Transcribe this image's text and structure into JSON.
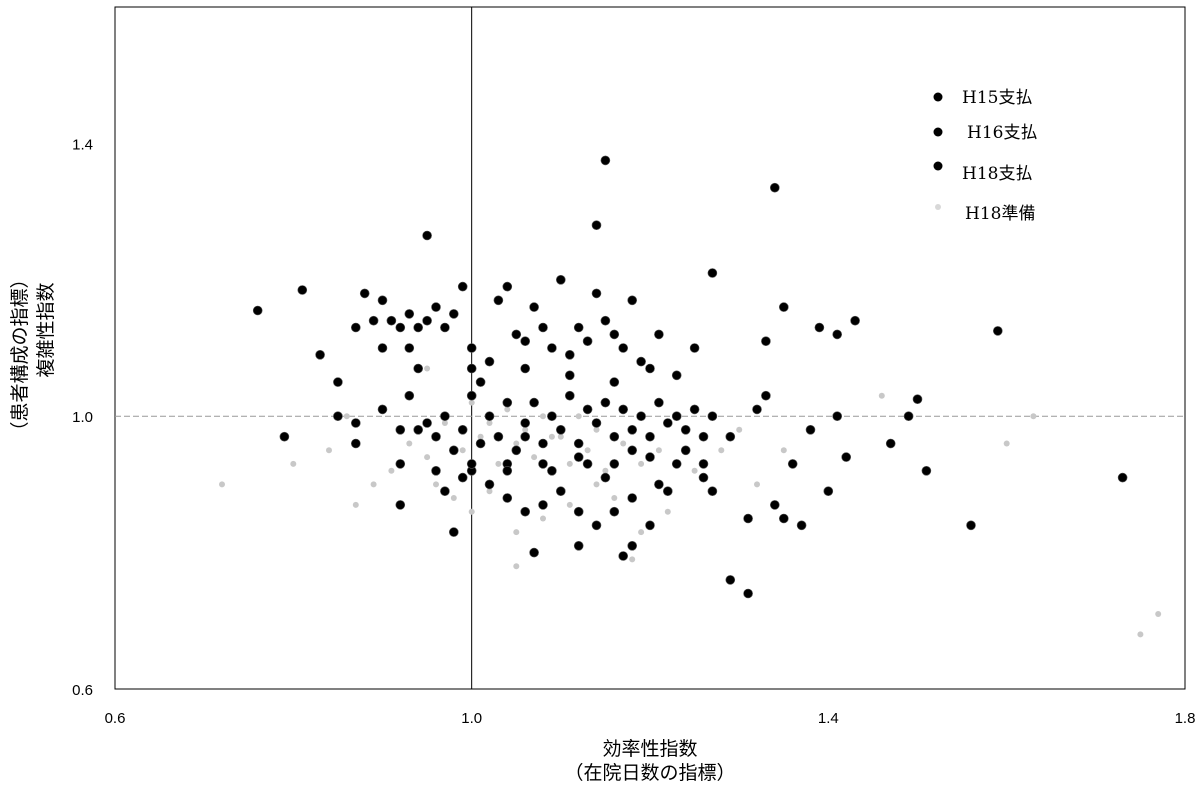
{
  "chart_data": {
    "type": "scatter",
    "xlabel_lines": [
      "効率性指数",
      "（在院日数の指標）"
    ],
    "ylabel_lines": [
      "（患者構成の指標）",
      "複雑性指数"
    ],
    "xlim": [
      0.6,
      1.8
    ],
    "ylim": [
      0.6,
      1.6
    ],
    "xticks": [
      "0.6",
      "1.0",
      "1.4",
      "1.8"
    ],
    "yticks": [
      "0.6",
      "1.0",
      "1.4"
    ],
    "grid": false,
    "reference_lines": {
      "x": 1.0,
      "y": 1.0
    },
    "legend_position": "top-right",
    "colors": {
      "H15": "#000000",
      "H16": "#000000",
      "H18": "#000000",
      "H18p": "#c8c8c8"
    },
    "series": [
      {
        "name": "H15支払",
        "points": [
          [
            0.76,
            1.155
          ],
          [
            0.81,
            1.185
          ],
          [
            0.83,
            1.09
          ],
          [
            0.85,
            1.05
          ],
          [
            0.85,
            1.0
          ],
          [
            0.87,
            1.13
          ],
          [
            0.88,
            1.18
          ],
          [
            0.89,
            1.14
          ],
          [
            0.9,
            1.17
          ],
          [
            0.91,
            1.14
          ],
          [
            0.92,
            1.13
          ],
          [
            0.93,
            1.15
          ],
          [
            0.94,
            1.13
          ],
          [
            0.95,
            1.14
          ],
          [
            0.96,
            1.16
          ],
          [
            0.97,
            1.13
          ],
          [
            0.98,
            1.15
          ],
          [
            0.99,
            1.19
          ],
          [
            1.0,
            1.1
          ],
          [
            1.01,
            1.05
          ],
          [
            1.02,
            1.08
          ],
          [
            1.03,
            1.17
          ],
          [
            1.04,
            1.19
          ],
          [
            1.05,
            1.12
          ],
          [
            1.06,
            1.11
          ],
          [
            1.07,
            1.16
          ],
          [
            1.08,
            1.13
          ],
          [
            1.09,
            1.1
          ],
          [
            1.1,
            1.2
          ],
          [
            1.11,
            1.09
          ],
          [
            1.12,
            1.13
          ],
          [
            1.13,
            1.11
          ],
          [
            1.14,
            1.18
          ],
          [
            1.15,
            1.14
          ],
          [
            1.16,
            1.12
          ],
          [
            1.17,
            1.1
          ],
          [
            1.18,
            1.17
          ],
          [
            1.19,
            1.08
          ],
          [
            1.21,
            1.12
          ],
          [
            1.23,
            1.06
          ],
          [
            1.25,
            1.1
          ],
          [
            1.27,
            1.21
          ],
          [
            1.33,
            1.11
          ],
          [
            1.35,
            1.16
          ],
          [
            1.39,
            1.13
          ],
          [
            1.41,
            1.12
          ],
          [
            1.43,
            1.14
          ],
          [
            1.59,
            1.125
          ],
          [
            0.95,
            1.265
          ],
          [
            1.14,
            1.28
          ],
          [
            1.15,
            1.375
          ],
          [
            1.34,
            1.335
          ],
          [
            0.9,
            1.1
          ],
          [
            0.93,
            1.1
          ],
          [
            1.0,
            1.07
          ],
          [
            1.06,
            1.07
          ],
          [
            1.11,
            1.06
          ],
          [
            1.16,
            1.05
          ],
          [
            1.2,
            1.07
          ],
          [
            0.94,
            1.07
          ]
        ]
      },
      {
        "name": "H16支払",
        "points": [
          [
            0.79,
            0.97
          ],
          [
            0.87,
            0.99
          ],
          [
            0.87,
            0.96
          ],
          [
            0.9,
            1.01
          ],
          [
            0.92,
            0.98
          ],
          [
            0.93,
            1.03
          ],
          [
            0.95,
            0.99
          ],
          [
            0.96,
            0.97
          ],
          [
            0.97,
            1.0
          ],
          [
            0.98,
            0.95
          ],
          [
            0.99,
            0.98
          ],
          [
            1.0,
            1.03
          ],
          [
            1.01,
            0.96
          ],
          [
            1.02,
            1.0
          ],
          [
            1.03,
            0.97
          ],
          [
            1.04,
            1.02
          ],
          [
            1.05,
            0.95
          ],
          [
            1.06,
            0.99
          ],
          [
            1.07,
            1.02
          ],
          [
            1.08,
            0.96
          ],
          [
            1.09,
            1.0
          ],
          [
            1.1,
            0.98
          ],
          [
            1.11,
            1.03
          ],
          [
            1.12,
            0.96
          ],
          [
            1.13,
            1.01
          ],
          [
            1.14,
            0.99
          ],
          [
            1.15,
            1.02
          ],
          [
            1.16,
            0.97
          ],
          [
            1.17,
            1.01
          ],
          [
            1.18,
            0.98
          ],
          [
            1.19,
            1.0
          ],
          [
            1.2,
            0.97
          ],
          [
            1.21,
            1.02
          ],
          [
            1.22,
            0.99
          ],
          [
            1.23,
            1.0
          ],
          [
            1.24,
            0.98
          ],
          [
            1.25,
            1.01
          ],
          [
            1.26,
            0.97
          ],
          [
            1.27,
            1.0
          ],
          [
            1.29,
            0.97
          ],
          [
            1.32,
            1.01
          ],
          [
            1.33,
            1.03
          ],
          [
            1.38,
            0.98
          ],
          [
            1.41,
            1.0
          ],
          [
            1.47,
            0.96
          ],
          [
            1.49,
            1.0
          ],
          [
            1.5,
            1.025
          ],
          [
            0.92,
            0.93
          ],
          [
            0.96,
            0.92
          ],
          [
            1.0,
            0.93
          ],
          [
            1.04,
            0.92
          ],
          [
            1.08,
            0.93
          ],
          [
            1.12,
            0.94
          ],
          [
            1.16,
            0.93
          ],
          [
            1.2,
            0.94
          ],
          [
            1.24,
            0.95
          ],
          [
            0.94,
            0.98
          ],
          [
            1.06,
            0.97
          ],
          [
            1.18,
            0.95
          ],
          [
            1.26,
            0.93
          ]
        ]
      },
      {
        "name": "H18支払",
        "points": [
          [
            0.92,
            0.87
          ],
          [
            0.97,
            0.89
          ],
          [
            0.99,
            0.91
          ],
          [
            1.02,
            0.9
          ],
          [
            1.04,
            0.88
          ],
          [
            1.06,
            0.86
          ],
          [
            1.08,
            0.87
          ],
          [
            1.1,
            0.89
          ],
          [
            1.12,
            0.86
          ],
          [
            1.14,
            0.84
          ],
          [
            1.16,
            0.86
          ],
          [
            1.18,
            0.88
          ],
          [
            1.2,
            0.84
          ],
          [
            1.22,
            0.89
          ],
          [
            1.07,
            0.8
          ],
          [
            1.12,
            0.81
          ],
          [
            1.17,
            0.795
          ],
          [
            1.18,
            0.81
          ],
          [
            1.29,
            0.76
          ],
          [
            1.31,
            0.74
          ],
          [
            1.31,
            0.85
          ],
          [
            1.34,
            0.87
          ],
          [
            1.35,
            0.85
          ],
          [
            1.36,
            0.93
          ],
          [
            1.37,
            0.84
          ],
          [
            1.4,
            0.89
          ],
          [
            1.42,
            0.94
          ],
          [
            1.51,
            0.92
          ],
          [
            1.56,
            0.84
          ],
          [
            1.73,
            0.91
          ],
          [
            0.98,
            0.83
          ],
          [
            1.27,
            0.89
          ],
          [
            1.04,
            0.93
          ],
          [
            1.09,
            0.92
          ],
          [
            1.15,
            0.91
          ],
          [
            1.21,
            0.9
          ],
          [
            1.0,
            0.92
          ],
          [
            1.13,
            0.93
          ],
          [
            1.26,
            0.91
          ],
          [
            1.23,
            0.93
          ]
        ]
      },
      {
        "name": "H18準備",
        "points": [
          [
            0.93,
            0.96
          ],
          [
            0.95,
            0.94
          ],
          [
            0.97,
            0.99
          ],
          [
            0.99,
            0.95
          ],
          [
            1.01,
            0.97
          ],
          [
            1.03,
            0.93
          ],
          [
            1.05,
            0.96
          ],
          [
            1.07,
            0.94
          ],
          [
            1.09,
            0.97
          ],
          [
            1.11,
            0.93
          ],
          [
            1.13,
            0.95
          ],
          [
            1.15,
            0.92
          ],
          [
            1.17,
            0.96
          ],
          [
            1.19,
            0.93
          ],
          [
            1.21,
            0.95
          ],
          [
            1.0,
            1.02
          ],
          [
            1.02,
            0.99
          ],
          [
            1.04,
            1.01
          ],
          [
            1.06,
            0.98
          ],
          [
            1.08,
            1.0
          ],
          [
            1.1,
            0.97
          ],
          [
            1.12,
            1.0
          ],
          [
            1.14,
            0.98
          ],
          [
            0.96,
            0.9
          ],
          [
            0.98,
            0.88
          ],
          [
            1.0,
            0.86
          ],
          [
            1.02,
            0.89
          ],
          [
            1.05,
            0.83
          ],
          [
            1.08,
            0.85
          ],
          [
            1.11,
            0.87
          ],
          [
            1.14,
            0.9
          ],
          [
            1.16,
            0.88
          ],
          [
            0.89,
            0.9
          ],
          [
            0.87,
            0.87
          ],
          [
            0.91,
            0.92
          ],
          [
            1.25,
            0.92
          ],
          [
            1.28,
            0.95
          ],
          [
            1.3,
            0.98
          ],
          [
            1.22,
            0.86
          ],
          [
            1.19,
            0.83
          ],
          [
            1.32,
            0.9
          ],
          [
            1.35,
            0.95
          ],
          [
            1.05,
            0.78
          ],
          [
            1.18,
            0.79
          ],
          [
            0.95,
            1.07
          ],
          [
            1.0,
            1.1
          ],
          [
            0.86,
            1.0
          ],
          [
            0.84,
            0.95
          ],
          [
            0.72,
            0.9
          ],
          [
            0.8,
            0.93
          ],
          [
            1.75,
            0.68
          ],
          [
            1.77,
            0.71
          ],
          [
            1.6,
            0.96
          ],
          [
            1.63,
            1.0
          ],
          [
            1.46,
            1.03
          ]
        ]
      }
    ]
  }
}
